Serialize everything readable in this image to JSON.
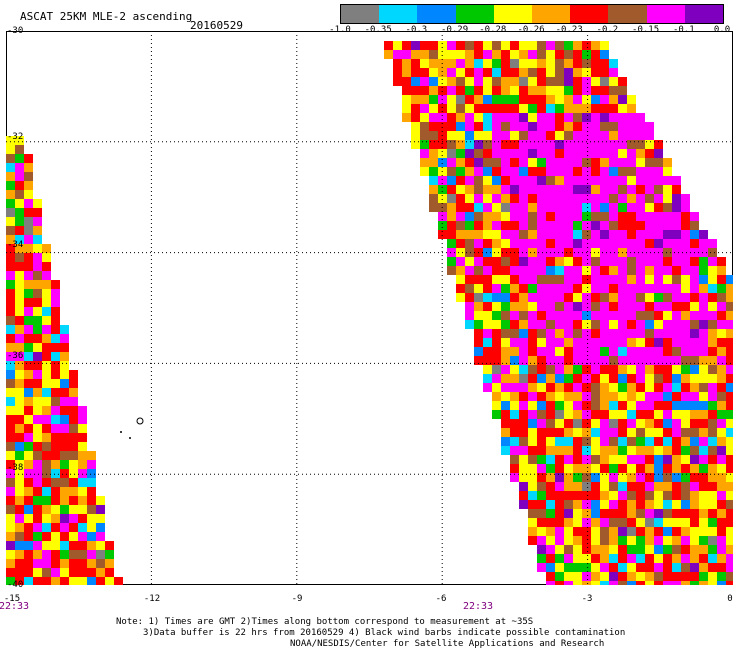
{
  "header": {
    "title": "ASCAT 25KM MLE-2 ascending",
    "date": "20160529"
  },
  "legend": {
    "colors": [
      "#7f7f7f",
      "#00d7ff",
      "#0087ff",
      "#00c800",
      "#ffff00",
      "#ffa500",
      "#ff0000",
      "#a05a2c",
      "#ff00ff",
      "#8000c0"
    ],
    "ticks": [
      "-1.0",
      "-0.35",
      "-0.3",
      "-0.29",
      "-0.28",
      "-0.26",
      "-0.23",
      "-0.2",
      "-0.15",
      "-0.1",
      "0.0"
    ]
  },
  "axes": {
    "lon_ticks": [
      "-15",
      "-12",
      "-9",
      "-6",
      "-3",
      "0"
    ],
    "lat_ticks": [
      "-30",
      "-32",
      "-34",
      "-36",
      "-38",
      "-40"
    ],
    "lon_range": [
      -15,
      0
    ],
    "lat_range": [
      -30,
      -40
    ]
  },
  "time_labels": [
    "22:33",
    "22:33"
  ],
  "notes": [
    "Note: 1) Times are GMT 2)Times along bottom correspond to measurement at ~35S",
    "3)Data buffer is 22 hrs from 20160529 4) Black wind barbs indicate possible contamination",
    "NOAA/NESDIS/Center for Satellite Applications and Research"
  ]
}
